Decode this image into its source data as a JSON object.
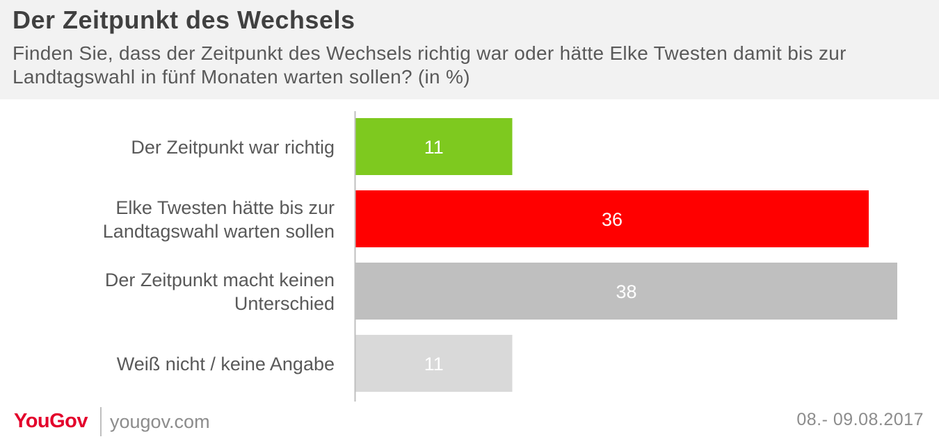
{
  "header": {
    "title": "Der Zeitpunkt des Wechsels",
    "subtitle": "Finden Sie, dass der Zeitpunkt des Wechsels richtig war oder hätte Elke Twesten damit bis zur Landtagswahl in fünf Monaten warten sollen? (in %)"
  },
  "chart_data": {
    "type": "bar",
    "orientation": "horizontal",
    "title": "Der Zeitpunkt des Wechsels",
    "subtitle": "Finden Sie, dass der Zeitpunkt des Wechsels richtig war oder hätte Elke Twesten damit bis zur Landtagswahl in fünf Monaten warten sollen? (in %)",
    "categories": [
      [
        "Der Zeitpunkt war richtig"
      ],
      [
        "Elke Twesten hätte bis zur",
        "Landtagswahl warten sollen"
      ],
      [
        "Der Zeitpunkt macht keinen",
        "Unterschied"
      ],
      [
        "Weiß nicht /  keine Angabe"
      ]
    ],
    "values": [
      11,
      36,
      38,
      11
    ],
    "colors": [
      "#7ec91f",
      "#ff0000",
      "#bfbfbf",
      "#d9d9d9"
    ],
    "xlim": [
      0,
      38
    ],
    "xlabel": "",
    "ylabel": "",
    "grid": false,
    "data_labels": true
  },
  "footer": {
    "brand": "YouGov",
    "url": "yougov.com",
    "date": "08.- 09.08.2017"
  }
}
